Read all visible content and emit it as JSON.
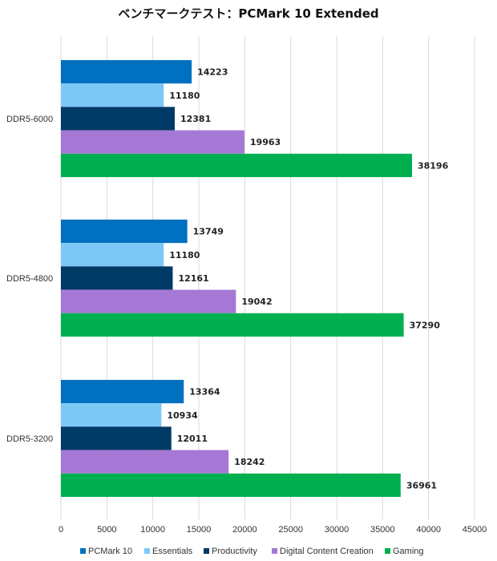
{
  "chart_data": {
    "type": "bar",
    "orientation": "horizontal",
    "title": "ベンチマークテスト：PCMark 10 Extended",
    "categories": [
      "DDR5-6000",
      "DDR5-4800",
      "DDR5-3200"
    ],
    "series": [
      {
        "name": "PCMark 10",
        "color": "#0070C0",
        "values": [
          14223,
          13749,
          13364
        ]
      },
      {
        "name": "Essentials",
        "color": "#7EC8F8",
        "values": [
          11180,
          11180,
          10934
        ]
      },
      {
        "name": "Productivity",
        "color": "#003A66",
        "values": [
          12381,
          12161,
          12011
        ]
      },
      {
        "name": "Digital Content Creation",
        "color": "#A678D6",
        "values": [
          19963,
          19042,
          18242
        ]
      },
      {
        "name": "Gaming",
        "color": "#00B050",
        "values": [
          38196,
          37290,
          36961
        ]
      }
    ],
    "xlim": [
      0,
      45000
    ],
    "xticks": [
      "0",
      "5000",
      "10000",
      "15000",
      "20000",
      "25000",
      "30000",
      "35000",
      "40000",
      "45000"
    ],
    "grid": true,
    "legend_position": "bottom"
  }
}
